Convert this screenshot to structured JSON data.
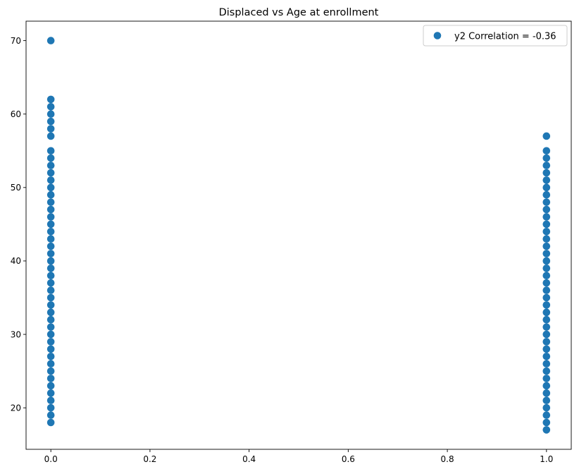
{
  "chart_data": {
    "type": "scatter",
    "title": "Displaced vs Age at enrollment",
    "xlabel": "",
    "ylabel": "",
    "xlim": [
      -0.05,
      1.05
    ],
    "ylim": [
      14.35,
      72.65
    ],
    "xticks": [
      0.0,
      0.2,
      0.4,
      0.6,
      0.8,
      1.0
    ],
    "xtick_labels": [
      "0.0",
      "0.2",
      "0.4",
      "0.6",
      "0.8",
      "1.0"
    ],
    "yticks": [
      20,
      30,
      40,
      50,
      60,
      70
    ],
    "ytick_labels": [
      "20",
      "30",
      "40",
      "50",
      "60",
      "70"
    ],
    "grid": false,
    "legend": {
      "placement": "upper-right",
      "entries": [
        "y2 Correlation = -0.36"
      ]
    },
    "series": [
      {
        "name": "y2 Correlation = -0.36",
        "color": "#1f77b4",
        "points": [
          [
            0,
            18
          ],
          [
            0,
            19
          ],
          [
            0,
            20
          ],
          [
            0,
            21
          ],
          [
            0,
            22
          ],
          [
            0,
            23
          ],
          [
            0,
            24
          ],
          [
            0,
            25
          ],
          [
            0,
            26
          ],
          [
            0,
            27
          ],
          [
            0,
            28
          ],
          [
            0,
            29
          ],
          [
            0,
            30
          ],
          [
            0,
            31
          ],
          [
            0,
            32
          ],
          [
            0,
            33
          ],
          [
            0,
            34
          ],
          [
            0,
            35
          ],
          [
            0,
            36
          ],
          [
            0,
            37
          ],
          [
            0,
            38
          ],
          [
            0,
            39
          ],
          [
            0,
            40
          ],
          [
            0,
            41
          ],
          [
            0,
            42
          ],
          [
            0,
            43
          ],
          [
            0,
            44
          ],
          [
            0,
            45
          ],
          [
            0,
            46
          ],
          [
            0,
            47
          ],
          [
            0,
            48
          ],
          [
            0,
            49
          ],
          [
            0,
            50
          ],
          [
            0,
            51
          ],
          [
            0,
            52
          ],
          [
            0,
            53
          ],
          [
            0,
            54
          ],
          [
            0,
            55
          ],
          [
            0,
            57
          ],
          [
            0,
            58
          ],
          [
            0,
            59
          ],
          [
            0,
            60
          ],
          [
            0,
            61
          ],
          [
            0,
            62
          ],
          [
            0,
            70
          ],
          [
            1,
            17
          ],
          [
            1,
            18
          ],
          [
            1,
            19
          ],
          [
            1,
            20
          ],
          [
            1,
            21
          ],
          [
            1,
            22
          ],
          [
            1,
            23
          ],
          [
            1,
            24
          ],
          [
            1,
            25
          ],
          [
            1,
            26
          ],
          [
            1,
            27
          ],
          [
            1,
            28
          ],
          [
            1,
            29
          ],
          [
            1,
            30
          ],
          [
            1,
            31
          ],
          [
            1,
            32
          ],
          [
            1,
            33
          ],
          [
            1,
            34
          ],
          [
            1,
            35
          ],
          [
            1,
            36
          ],
          [
            1,
            37
          ],
          [
            1,
            38
          ],
          [
            1,
            39
          ],
          [
            1,
            40
          ],
          [
            1,
            41
          ],
          [
            1,
            42
          ],
          [
            1,
            43
          ],
          [
            1,
            44
          ],
          [
            1,
            45
          ],
          [
            1,
            46
          ],
          [
            1,
            47
          ],
          [
            1,
            48
          ],
          [
            1,
            49
          ],
          [
            1,
            50
          ],
          [
            1,
            51
          ],
          [
            1,
            52
          ],
          [
            1,
            53
          ],
          [
            1,
            54
          ],
          [
            1,
            55
          ],
          [
            1,
            57
          ]
        ]
      }
    ]
  }
}
